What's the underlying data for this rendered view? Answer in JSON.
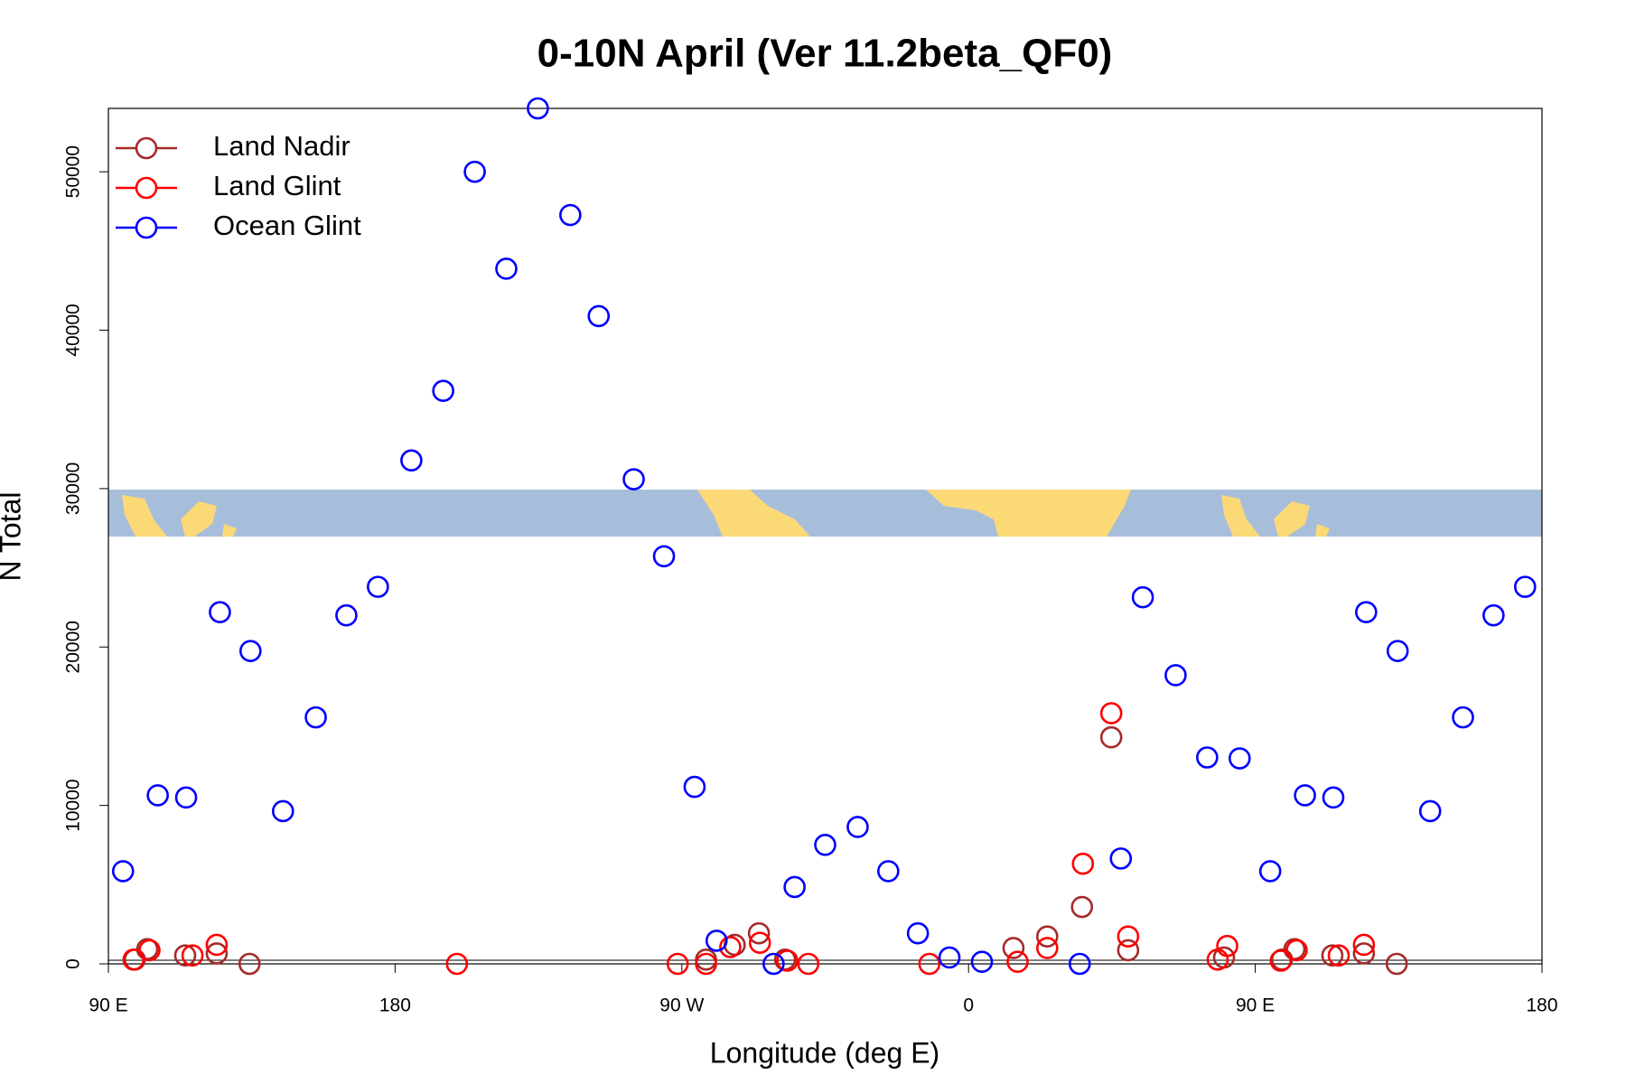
{
  "chart_data": {
    "type": "scatter",
    "title": "0-10N April (Ver 11.2beta_QF0)",
    "x_label": "Longitude (deg E)",
    "y_label": "N Total",
    "xlim": [
      90,
      540
    ],
    "ylim": [
      0,
      54000
    ],
    "xticks": [
      {
        "value": 90,
        "label": "90 E"
      },
      180,
      {
        "value": 270,
        "label": "90 W"
      },
      {
        "value": 360,
        "label": "0"
      },
      {
        "value": 450,
        "label": "90 E"
      },
      {
        "value": 540,
        "label": "180"
      }
    ],
    "yticks": [
      0,
      10000,
      20000,
      30000,
      40000,
      50000
    ],
    "legend": "topleft",
    "series": [
      {
        "name": "Land Nadir",
        "color": "#a52a2a",
        "x": [
          98.3,
          102.2,
          114.1,
          124.0,
          134.3,
          277.6,
          286.6,
          294.2,
          302.4,
          374.1,
          384.7,
          395.6,
          404.8,
          410.1,
          440.2,
          458.4,
          462.3,
          474.2,
          484.1,
          494.4
        ],
        "values": [
          270,
          930,
          530,
          660,
          0,
          270,
          1200,
          1930,
          270,
          1000,
          1730,
          3590,
          14300,
          860,
          400,
          270,
          930,
          530,
          660,
          0
        ]
      },
      {
        "name": "Land Glint",
        "color": "#ff0000",
        "x": [
          97.9,
          102.9,
          116.4,
          124.0,
          199.4,
          268.7,
          277.6,
          285.2,
          294.5,
          303.1,
          309.7,
          347.7,
          375.4,
          384.7,
          395.9,
          404.8,
          410.1,
          438.2,
          441.2,
          458.0,
          463.0,
          476.2,
          484.1
        ],
        "values": [
          270,
          860,
          530,
          1200,
          0,
          0,
          0,
          1060,
          1330,
          200,
          0,
          0,
          130,
          1000,
          6320,
          15820,
          1730,
          270,
          1130,
          200,
          860,
          530,
          1200
        ]
      },
      {
        "name": "Ocean Glint",
        "color": "#0000ff",
        "x": [
          94.6,
          105.5,
          114.4,
          125.0,
          134.6,
          144.8,
          155.1,
          164.7,
          174.6,
          185.1,
          195.1,
          205.0,
          214.9,
          224.8,
          235.0,
          243.9,
          254.9,
          264.4,
          274.0,
          280.9,
          298.8,
          305.4,
          315.0,
          325.2,
          334.8,
          344.1,
          354.0,
          364.2,
          394.9,
          407.8,
          414.7,
          425.0,
          434.9,
          445.1,
          454.7,
          465.6,
          474.5,
          484.8,
          494.7,
          504.9,
          515.2,
          524.8,
          534.7
        ],
        "values": [
          5850,
          10640,
          10500,
          22200,
          19750,
          9640,
          15560,
          22000,
          23800,
          31780,
          36170,
          50000,
          43880,
          54000,
          47270,
          40890,
          30590,
          25730,
          11170,
          1460,
          0,
          4850,
          7510,
          8640,
          5850,
          1930,
          400,
          130,
          0,
          6650,
          23140,
          18220,
          13030,
          12970,
          5850,
          10640,
          10500,
          22200,
          19750,
          9640,
          15560,
          22000,
          23800
        ]
      }
    ]
  }
}
